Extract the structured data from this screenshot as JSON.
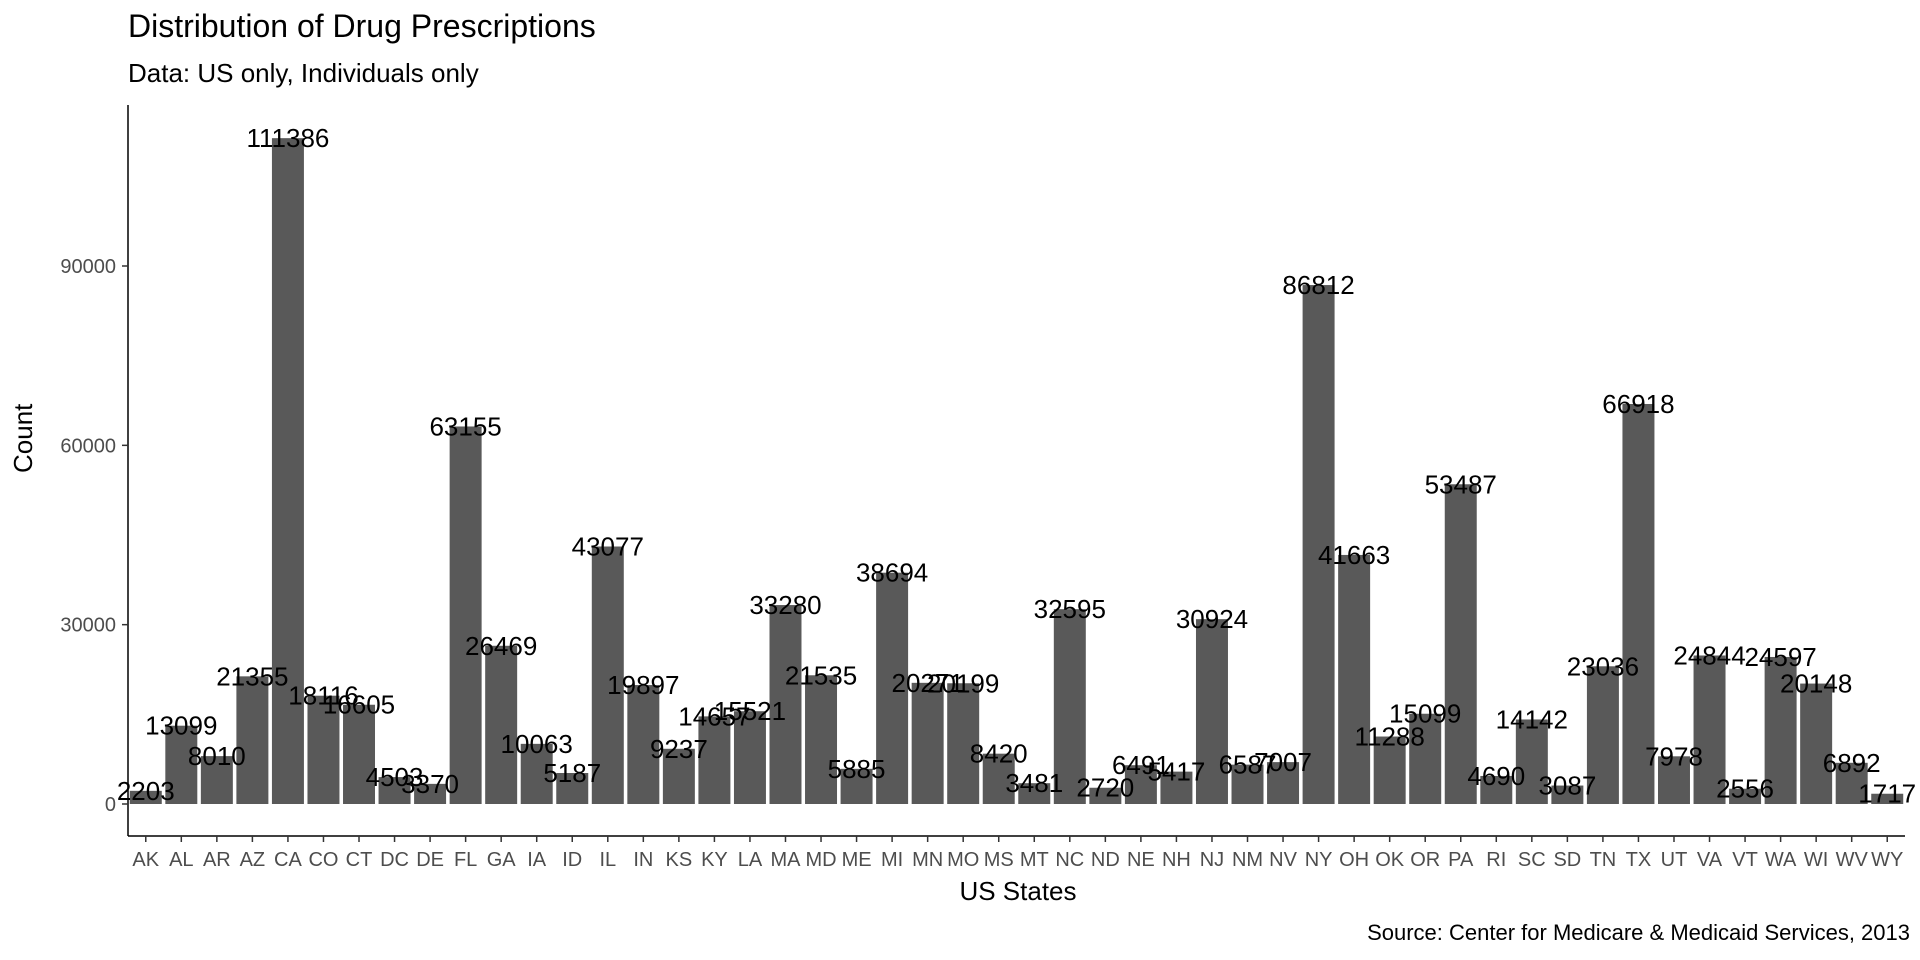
{
  "chart_data": {
    "type": "bar",
    "title": "Distribution of Drug Prescriptions",
    "subtitle": "Data: US only, Individuals only",
    "caption": "Source: Center for Medicare & Medicaid Services, 2013",
    "xlabel": "US States",
    "ylabel": "Count",
    "ylim": [
      0,
      115000
    ],
    "yticks": [
      0,
      30000,
      60000,
      90000
    ],
    "grid": false,
    "bar_color": "#595959",
    "label_color": "#000000",
    "categories": [
      "AK",
      "AL",
      "AR",
      "AZ",
      "CA",
      "CO",
      "CT",
      "DC",
      "DE",
      "FL",
      "GA",
      "IA",
      "ID",
      "IL",
      "IN",
      "KS",
      "KY",
      "LA",
      "MA",
      "MD",
      "ME",
      "MI",
      "MN",
      "MO",
      "MS",
      "MT",
      "NC",
      "ND",
      "NE",
      "NH",
      "NJ",
      "NM",
      "NV",
      "NY",
      "OH",
      "OK",
      "OR",
      "PA",
      "RI",
      "SC",
      "SD",
      "TN",
      "TX",
      "UT",
      "VA",
      "VT",
      "WA",
      "WI",
      "WV",
      "WY"
    ],
    "values": [
      2203,
      13099,
      8010,
      21355,
      111386,
      18116,
      16605,
      4503,
      3370,
      63155,
      26469,
      10063,
      5187,
      43077,
      19897,
      9237,
      14657,
      15521,
      33280,
      21535,
      5885,
      38694,
      20271,
      20199,
      8420,
      3481,
      32595,
      2720,
      6491,
      5417,
      30924,
      6587,
      7007,
      86812,
      41663,
      11288,
      15099,
      53487,
      4690,
      14142,
      3087,
      23036,
      66918,
      7978,
      24844,
      2556,
      24597,
      20148,
      6892,
      1717
    ],
    "value_labels": [
      "2203",
      "13099",
      "8010",
      "21355",
      "111386",
      "18116",
      "16605",
      "4503",
      "3370",
      "63155",
      "26469",
      "10063",
      "5187",
      "43077",
      "19897",
      "9237",
      "14657",
      "15521",
      "33280",
      "21535",
      "5885",
      "38694",
      "20271",
      "20199",
      "8420",
      "3481",
      "32595",
      "2720",
      "6491",
      "5417",
      "30924",
      "6587",
      "7007",
      "86812",
      "41663",
      "11288",
      "15099",
      "53487",
      "4690",
      "14142",
      "3087",
      "23036",
      "66918",
      "7978",
      "24844",
      "2556",
      "24597",
      "20148",
      "6892",
      "1717"
    ]
  }
}
